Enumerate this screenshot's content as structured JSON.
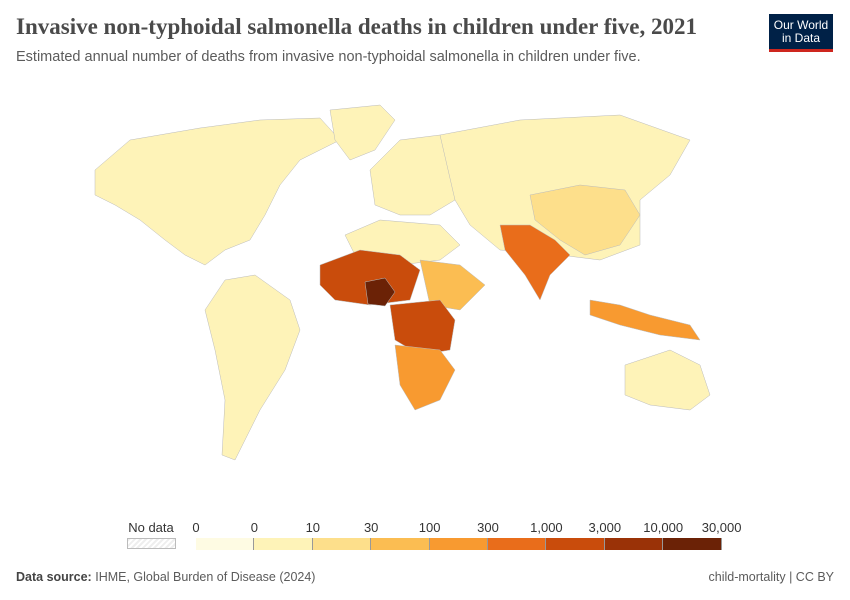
{
  "header": {
    "title": "Invasive non-typhoidal salmonella deaths in children under five, 2021",
    "subtitle": "Estimated annual number of deaths from invasive non-typhoidal salmonella in children under five.",
    "logo": "Our World in Data"
  },
  "legend": {
    "no_data_label": "No data",
    "ticks": [
      "0",
      "0",
      "10",
      "30",
      "100",
      "300",
      "1,000",
      "3,000",
      "10,000",
      "30,000"
    ],
    "colors": [
      "#fefbe3",
      "#fef3b8",
      "#fddf8b",
      "#fbbd52",
      "#f89a30",
      "#e96d1b",
      "#c94c0c",
      "#9a3207",
      "#6b2206"
    ]
  },
  "footer": {
    "source_label": "Data source:",
    "source": "IHME, Global Burden of Disease (2024)",
    "right": "child-mortality | CC BY"
  }
}
